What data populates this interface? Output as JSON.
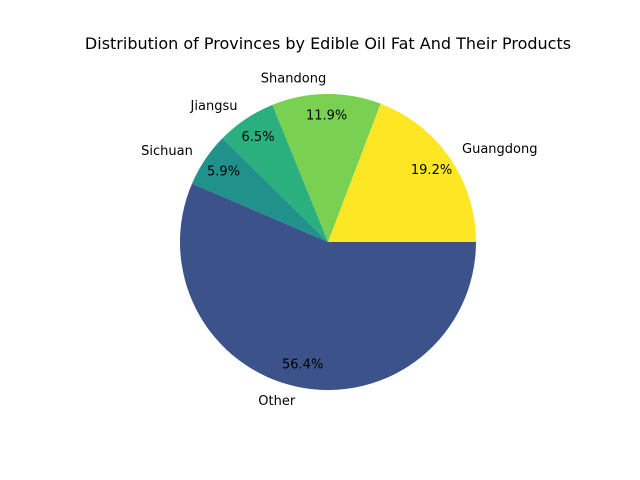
{
  "chart_data": {
    "type": "pie",
    "title": "Distribution of Provinces by Edible Oil Fat And Their Products",
    "start_angle_deg": 0,
    "direction": "counterclockwise",
    "slices": [
      {
        "label": "Guangdong",
        "percent": 19.2,
        "percent_label": "19.2%",
        "color": "#fde725"
      },
      {
        "label": "Shandong",
        "percent": 11.9,
        "percent_label": "11.9%",
        "color": "#7ad151"
      },
      {
        "label": "Jiangsu",
        "percent": 6.5,
        "percent_label": "6.5%",
        "color": "#2ab07f"
      },
      {
        "label": "Sichuan",
        "percent": 5.9,
        "percent_label": "5.9%",
        "color": "#21918c"
      },
      {
        "label": "Other",
        "percent": 56.4,
        "percent_label": "56.4%",
        "color": "#3b528b"
      }
    ],
    "legend": "none"
  }
}
